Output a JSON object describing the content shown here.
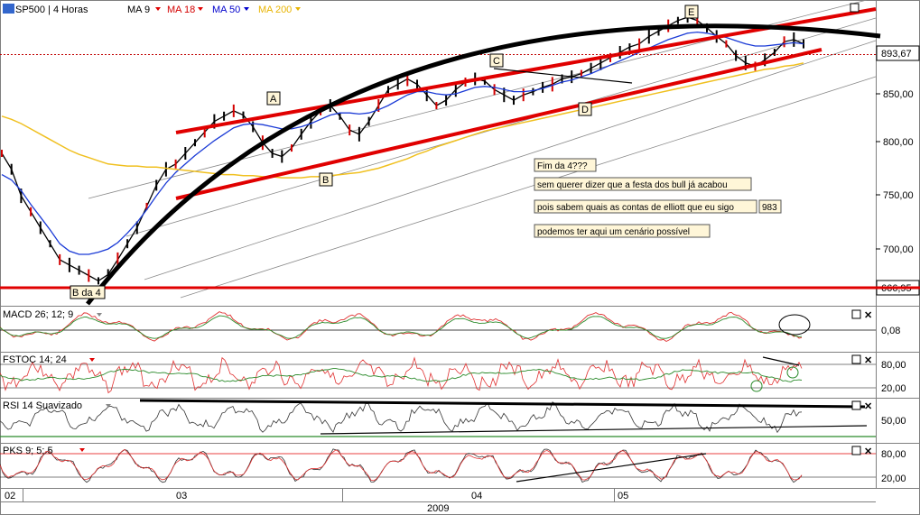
{
  "header": {
    "symbol": "SP500 | 4 Horas",
    "ma": [
      {
        "label": "MA 9",
        "color": "#000000"
      },
      {
        "label": "MA 18",
        "color": "#d40000"
      },
      {
        "label": "MA 50",
        "color": "#0000cc"
      },
      {
        "label": "MA 200",
        "color": "#e8b400"
      }
    ]
  },
  "price_axis": {
    "ticks": [
      "850,00",
      "800,00",
      "750,00",
      "700,00"
    ],
    "current_price": "893,67",
    "support_price": "666,95"
  },
  "annotations": {
    "waves": [
      {
        "id": "A",
        "label": "A"
      },
      {
        "id": "B",
        "label": "B"
      },
      {
        "id": "C",
        "label": "C"
      },
      {
        "id": "D",
        "label": "D"
      },
      {
        "id": "E",
        "label": "E"
      },
      {
        "id": "B4",
        "label": "B da 4"
      }
    ],
    "notes": [
      "Fim da 4???",
      "sem querer dizer que a festa dos bull já acabou",
      "pois sabem quais as contas de elliott que eu sigo",
      "podemos ter aqui um cenário possível"
    ],
    "note_value": "983"
  },
  "panels": [
    {
      "id": "macd",
      "label": "MACD 26; 12; 9",
      "ticks": [
        "0,08"
      ]
    },
    {
      "id": "fstoc",
      "label": "FSTOC 14; 24",
      "ticks": [
        "80,00",
        "20,00"
      ]
    },
    {
      "id": "rsi",
      "label": "RSI 14 Suavizado",
      "ticks": [
        "50,00"
      ]
    },
    {
      "id": "pks",
      "label": "PKS 9; 5; 5",
      "ticks": [
        "80,00",
        "20,00"
      ]
    }
  ],
  "time_axis": {
    "months": [
      "02",
      "03",
      "04",
      "05"
    ],
    "year": "2009"
  },
  "chart_data": {
    "type": "line",
    "title": "SP500 | 4 Horas",
    "xlabel": "2009",
    "ylabel": "",
    "ylim": [
      650,
      930
    ],
    "series": [
      {
        "name": "SP500",
        "values": [
          790,
          775,
          750,
          735,
          720,
          705,
          690,
          685,
          680,
          675,
          670,
          676,
          690,
          705,
          720,
          740,
          760,
          775,
          780,
          790,
          800,
          810,
          820,
          825,
          830,
          826,
          815,
          800,
          790,
          787,
          795,
          808,
          820,
          830,
          835,
          825,
          812,
          808,
          820,
          835,
          850,
          855,
          860,
          855,
          845,
          835,
          840,
          850,
          857,
          860,
          858,
          850,
          845,
          840,
          845,
          848,
          852,
          855,
          860,
          862,
          865,
          870,
          875,
          880,
          885,
          890,
          893,
          900,
          905,
          910,
          915,
          918,
          915,
          908,
          900,
          893,
          882,
          875,
          872,
          878,
          885,
          895,
          897,
          893
        ]
      },
      {
        "name": "MA 50",
        "values": [
          770,
          765,
          755,
          742,
          730,
          718,
          705,
          698,
          695,
          695,
          697,
          700,
          706,
          715,
          725,
          737,
          750,
          762,
          772,
          780,
          788,
          795,
          802,
          808,
          814,
          817,
          818,
          817,
          815,
          813,
          813,
          815,
          818,
          822,
          826,
          828,
          828,
          827,
          828,
          831,
          835,
          840,
          845,
          848,
          848,
          846,
          845,
          846,
          849,
          852,
          853,
          852,
          850,
          848,
          848,
          849,
          851,
          854,
          857,
          859,
          862,
          865,
          869,
          873,
          877,
          881,
          885,
          889,
          893,
          897,
          900,
          903,
          904,
          903,
          901,
          899,
          896,
          893,
          891,
          891,
          892,
          893,
          894,
          893
        ]
      },
      {
        "name": "MA 200",
        "values": [
          825,
          822,
          818,
          813,
          808,
          803,
          798,
          793,
          789,
          786,
          783,
          780,
          779,
          778,
          778,
          777,
          777,
          776,
          775,
          774,
          773,
          772,
          771,
          770,
          770,
          769,
          769,
          768,
          768,
          767,
          767,
          767,
          768,
          768,
          769,
          770,
          771,
          772,
          774,
          776,
          779,
          782,
          785,
          789,
          792,
          796,
          799,
          802,
          805,
          808,
          811,
          813,
          815,
          817,
          819,
          821,
          823,
          825,
          827,
          829,
          831,
          833,
          835,
          837,
          839,
          841,
          843,
          845,
          847,
          849,
          851,
          853,
          855,
          857,
          859,
          861,
          863,
          865,
          867,
          869,
          870,
          872,
          873,
          875
        ]
      }
    ],
    "levels": [
      893.67,
      666.95
    ]
  }
}
